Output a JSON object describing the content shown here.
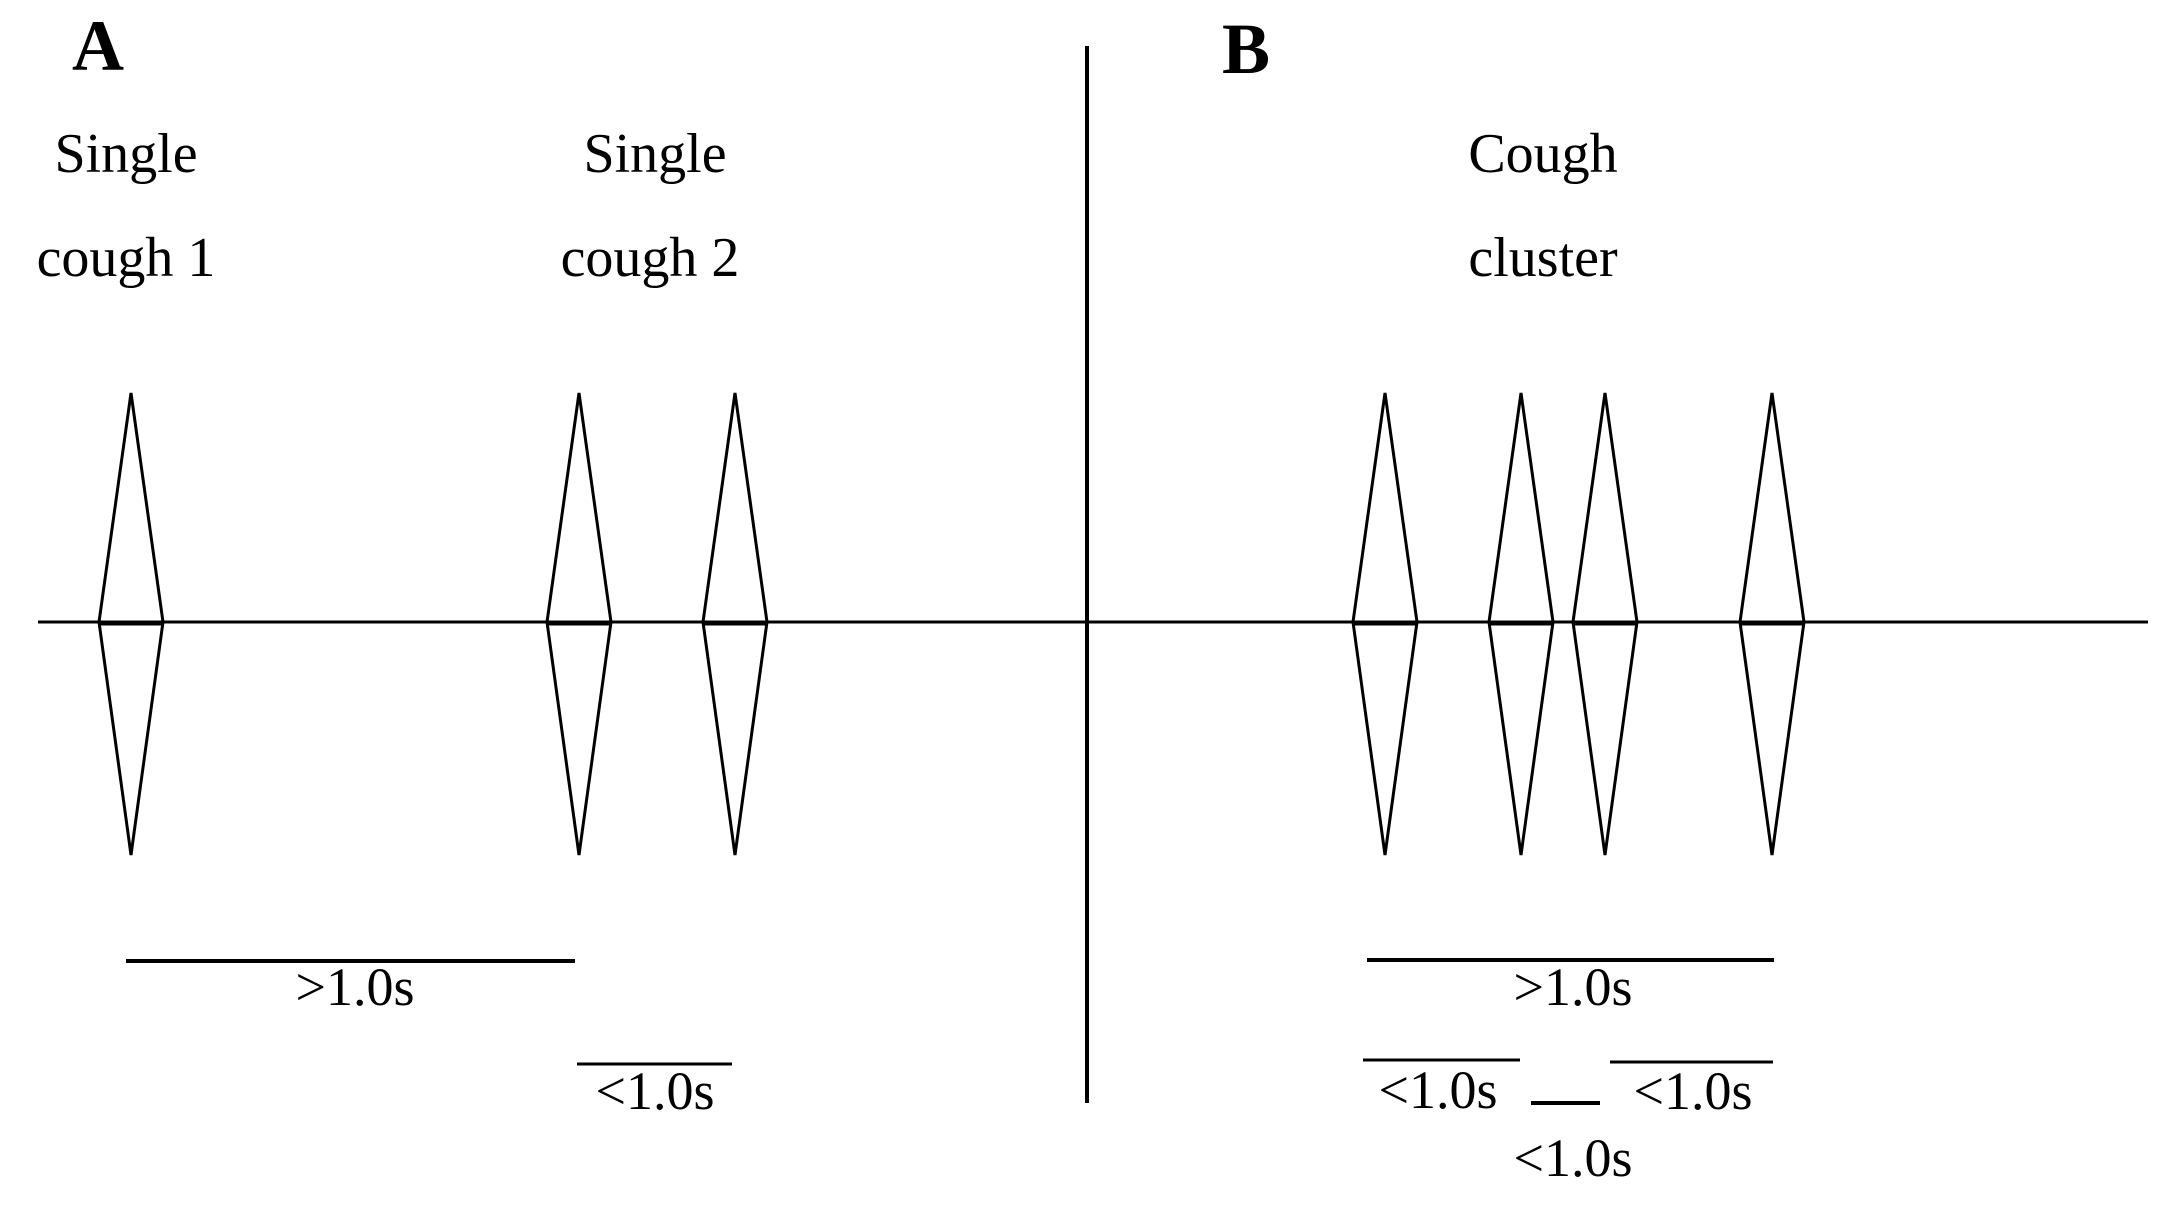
{
  "panels": {
    "a": {
      "label": "A",
      "captions": {
        "single1_line1": "Single",
        "single1_line2": "cough 1",
        "single2_line1": "Single",
        "single2_line2": "cough 2"
      },
      "intervals": {
        "long": ">1.0s",
        "short": "<1.0s"
      }
    },
    "b": {
      "label": "B",
      "captions": {
        "cluster_line1": "Cough",
        "cluster_line2": "cluster"
      },
      "intervals": {
        "total": ">1.0s",
        "gap1": "<1.0s",
        "gap2": "<1.0s",
        "gap3": "<1.0s"
      }
    }
  }
}
